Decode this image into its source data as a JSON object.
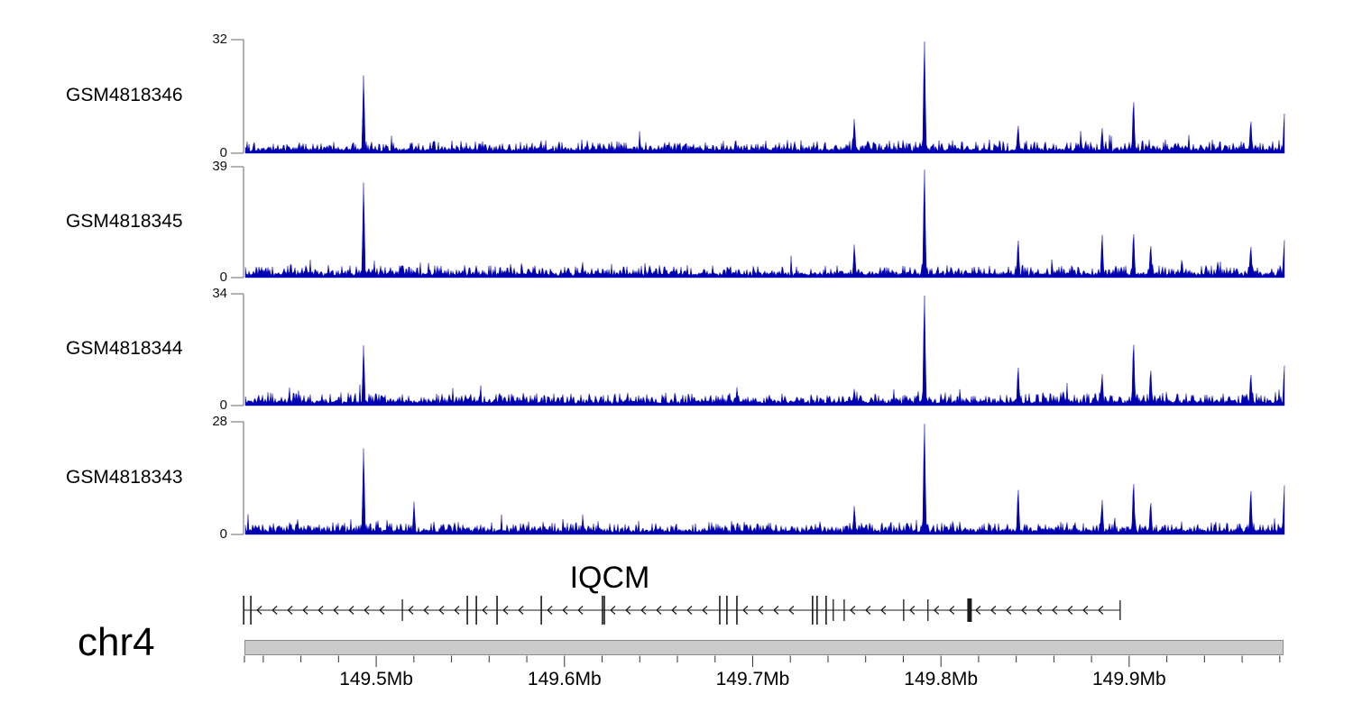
{
  "ui": {
    "zero_label": "0"
  },
  "chart_data": {
    "type": "area",
    "description": "Genome browser coverage tracks (4 GEO samples) over chr4 around the IQCM gene",
    "signal_color": "#0000B2",
    "x_axis": {
      "chromosome": "chr4",
      "unit": "Mb",
      "start_mb": 149.43,
      "end_mb": 149.983,
      "major_ticks_mb": [
        149.5,
        149.6,
        149.7,
        149.8,
        149.9
      ],
      "major_tick_labels": [
        "149.5Mb",
        "149.6Mb",
        "149.7Mb",
        "149.8Mb",
        "149.9Mb"
      ],
      "minor_tick_step_mb": 0.02,
      "grid": false
    },
    "tracks": [
      {
        "name": "GSM4818346",
        "ymin": 0,
        "ymax": 32,
        "noise_seed": 101,
        "peaks": [
          {
            "mb": 149.4933,
            "value": 21
          },
          {
            "mb": 149.754,
            "value": 9.5
          },
          {
            "mb": 149.7912,
            "value": 31.5
          },
          {
            "mb": 149.841,
            "value": 8
          },
          {
            "mb": 149.8856,
            "value": 7
          },
          {
            "mb": 149.9023,
            "value": 15.5
          },
          {
            "mb": 149.9646,
            "value": 9.5
          },
          {
            "mb": 149.9824,
            "value": 11
          }
        ]
      },
      {
        "name": "GSM4818345",
        "ymin": 0,
        "ymax": 39,
        "noise_seed": 202,
        "peaks": [
          {
            "mb": 149.4933,
            "value": 32
          },
          {
            "mb": 149.754,
            "value": 11.5
          },
          {
            "mb": 149.7912,
            "value": 38
          },
          {
            "mb": 149.841,
            "value": 13.5
          },
          {
            "mb": 149.8856,
            "value": 15
          },
          {
            "mb": 149.9023,
            "value": 16.5
          },
          {
            "mb": 149.9114,
            "value": 12
          },
          {
            "mb": 149.928,
            "value": 6.5
          },
          {
            "mb": 149.9646,
            "value": 11.5
          },
          {
            "mb": 149.9824,
            "value": 13
          }
        ]
      },
      {
        "name": "GSM4818344",
        "ymin": 0,
        "ymax": 34,
        "noise_seed": 303,
        "peaks": [
          {
            "mb": 149.4933,
            "value": 17.5
          },
          {
            "mb": 149.754,
            "value": 5
          },
          {
            "mb": 149.7912,
            "value": 33.5
          },
          {
            "mb": 149.841,
            "value": 12
          },
          {
            "mb": 149.8856,
            "value": 9.5
          },
          {
            "mb": 149.9023,
            "value": 20
          },
          {
            "mb": 149.9114,
            "value": 11.5
          },
          {
            "mb": 149.9646,
            "value": 10
          },
          {
            "mb": 149.9824,
            "value": 12
          }
        ]
      },
      {
        "name": "GSM4818343",
        "ymin": 0,
        "ymax": 28,
        "noise_seed": 404,
        "peaks": [
          {
            "mb": 149.4933,
            "value": 20.5
          },
          {
            "mb": 149.5201,
            "value": 7.5
          },
          {
            "mb": 149.754,
            "value": 7
          },
          {
            "mb": 149.7912,
            "value": 27.5
          },
          {
            "mb": 149.841,
            "value": 11.5
          },
          {
            "mb": 149.8856,
            "value": 8.5
          },
          {
            "mb": 149.9023,
            "value": 13.5
          },
          {
            "mb": 149.9114,
            "value": 8.5
          },
          {
            "mb": 149.9646,
            "value": 11.5
          },
          {
            "mb": 149.9824,
            "value": 12
          }
        ]
      }
    ],
    "gene": {
      "name": "IQCM",
      "strand": "-",
      "start_mb": 149.4296,
      "end_mb": 149.8952,
      "exons": [
        {
          "mb": 149.4296,
          "size": "tall"
        },
        {
          "mb": 149.4334,
          "size": "tall"
        },
        {
          "mb": 149.5139,
          "size": "medium"
        },
        {
          "mb": 149.5484,
          "size": "tall"
        },
        {
          "mb": 149.5532,
          "size": "tall"
        },
        {
          "mb": 149.5642,
          "size": "tall"
        },
        {
          "mb": 149.5877,
          "size": "tall"
        },
        {
          "mb": 149.6202,
          "size": "tall"
        },
        {
          "mb": 149.6212,
          "size": "tall"
        },
        {
          "mb": 149.6825,
          "size": "tall"
        },
        {
          "mb": 149.6863,
          "size": "tall"
        },
        {
          "mb": 149.6916,
          "size": "tall"
        },
        {
          "mb": 149.7318,
          "size": "tall"
        },
        {
          "mb": 149.7342,
          "size": "tall"
        },
        {
          "mb": 149.739,
          "size": "tall"
        },
        {
          "mb": 149.7428,
          "size": "medium"
        },
        {
          "mb": 149.7486,
          "size": "medium"
        },
        {
          "mb": 149.7802,
          "size": "medium"
        },
        {
          "mb": 149.7931,
          "size": "medium"
        },
        {
          "mb": 149.8152,
          "size": "block"
        },
        {
          "mb": 149.8952,
          "size": "end"
        }
      ]
    }
  }
}
